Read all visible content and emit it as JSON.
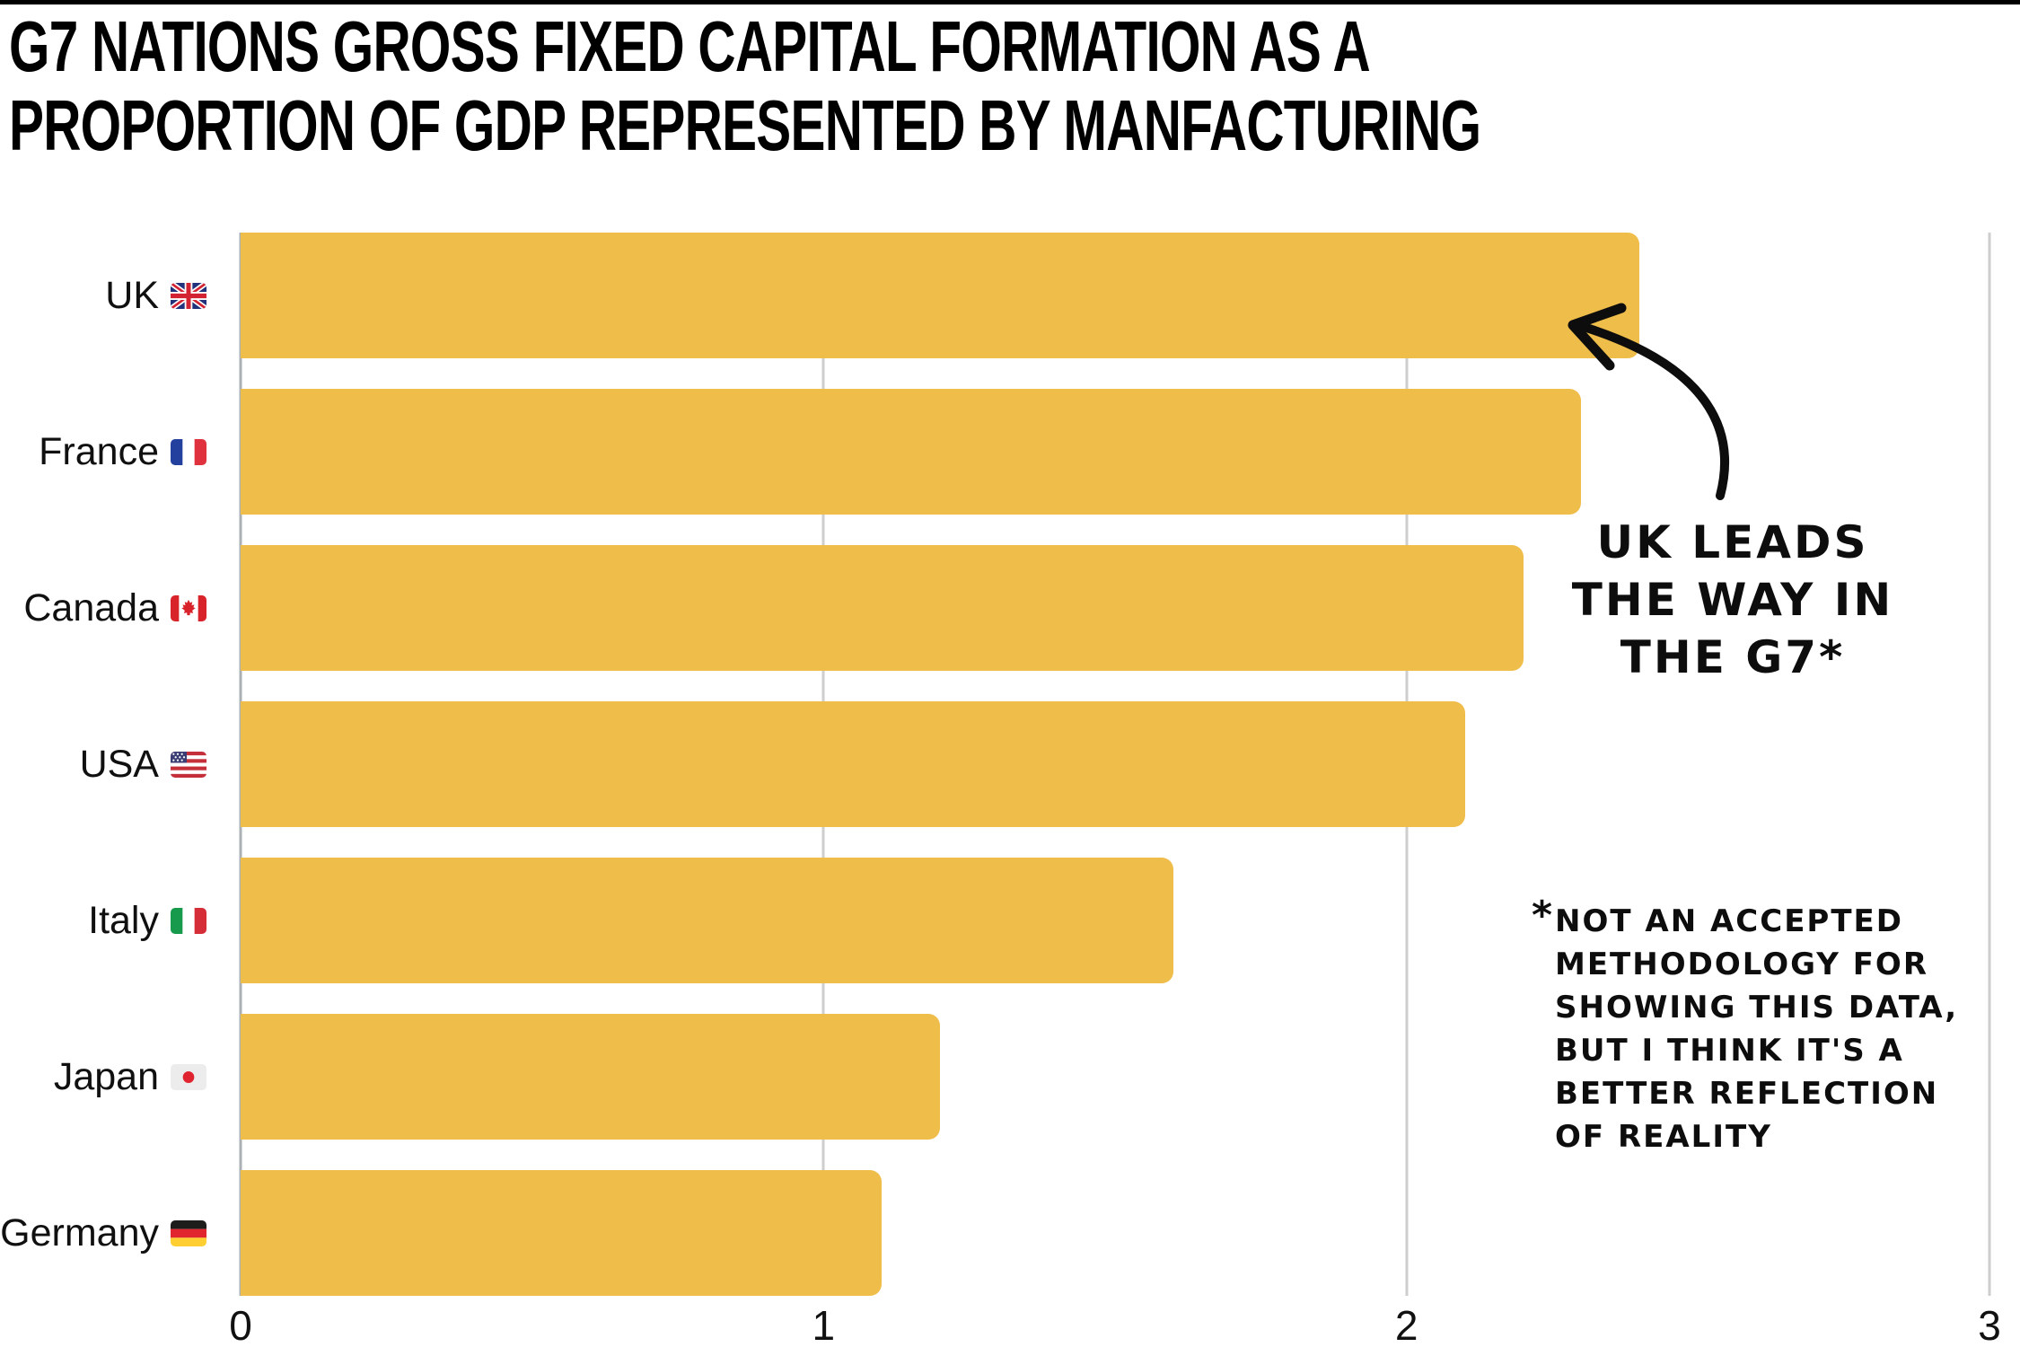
{
  "header": {
    "line1": "G7 NATIONS GROSS FIXED CAPITAL FORMATION AS A",
    "line2": "PROPORTION OF GDP REPRESENTED BY MANFACTURING"
  },
  "chart_data": {
    "type": "bar",
    "orientation": "horizontal",
    "title": "G7 NATIONS GROSS FIXED CAPITAL FORMATION AS A PROPORTION OF GDP REPRESENTED BY MANFACTURING",
    "categories": [
      "UK",
      "France",
      "Canada",
      "USA",
      "Italy",
      "Japan",
      "Germany"
    ],
    "flags": [
      "🇬🇧",
      "🇫🇷",
      "🇨🇦",
      "🇺🇸",
      "🇮🇹",
      "🇯🇵",
      "🇩🇪"
    ],
    "flag_icons": [
      "uk-flag-icon",
      "france-flag-icon",
      "canada-flag-icon",
      "usa-flag-icon",
      "italy-flag-icon",
      "japan-flag-icon",
      "germany-flag-icon"
    ],
    "values": [
      2.4,
      2.3,
      2.2,
      2.1,
      1.6,
      1.2,
      1.1
    ],
    "xlabel": "",
    "ylabel": "",
    "xlim": [
      0,
      3
    ],
    "x_ticks": [
      0,
      1,
      2,
      3
    ],
    "grid": true,
    "legend": false
  },
  "annotations": {
    "callout": {
      "lines": [
        "UK LEADS",
        "THE WAY IN",
        "THE G7*"
      ]
    },
    "footnote": {
      "marker": "*",
      "lines": [
        "NOT AN ACCEPTED",
        "METHODOLOGY FOR",
        "SHOWING THIS DATA,",
        "BUT I THINK IT'S A",
        "BETTER REFLECTION",
        "OF REALITY"
      ]
    }
  },
  "colors": {
    "bar": "#EFBD49",
    "gridline": "#CECECE",
    "axis_line": "#ABB0B4",
    "ink": "#0D0D0D"
  }
}
